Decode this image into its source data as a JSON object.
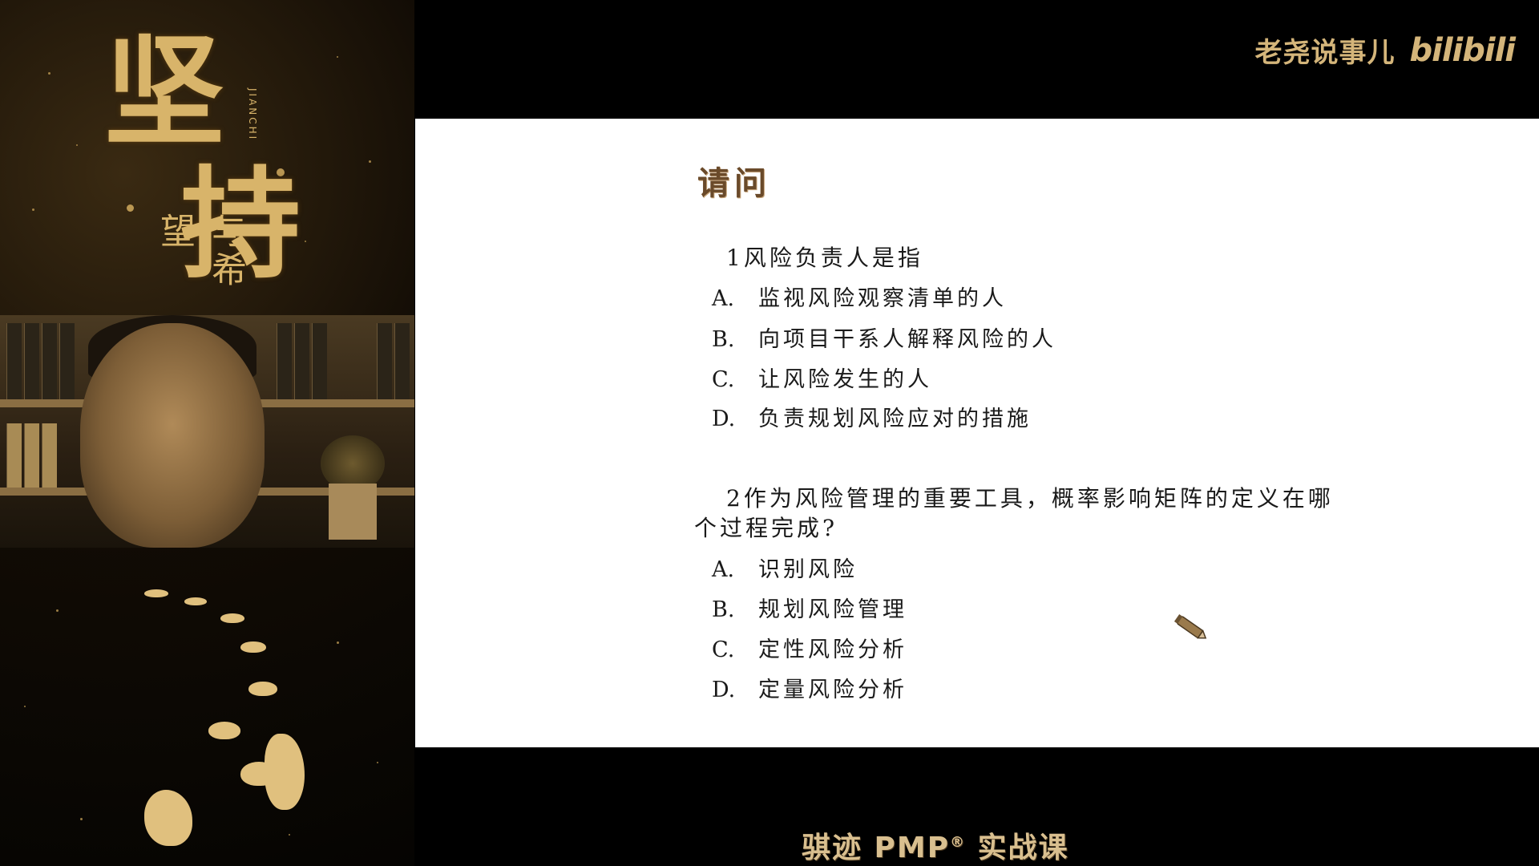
{
  "brand": {
    "author": "老尧说事儿",
    "logo": "bilibili"
  },
  "poster": {
    "title_char_1": "坚",
    "title_char_2": "持",
    "subtitle": "与希望",
    "pinyin": "JIANCHI"
  },
  "slide": {
    "heading": "请问",
    "question1": {
      "text": "1风险负责人是指",
      "options": [
        {
          "label": "A.",
          "text": "监视风险观察清单的人"
        },
        {
          "label": "B.",
          "text": "向项目干系人解释风险的人"
        },
        {
          "label": "C.",
          "text": "让风险发生的人"
        },
        {
          "label": "D.",
          "text": "负责规划风险应对的措施"
        }
      ]
    },
    "question2": {
      "text_line1": "2作为风险管理的重要工具，概率影响矩阵的定义在哪",
      "text_line2": "个过程完成?",
      "options": [
        {
          "label": "A.",
          "text": "识别风险"
        },
        {
          "label": "B.",
          "text": "规划风险管理"
        },
        {
          "label": "C.",
          "text": "定性风险分析"
        },
        {
          "label": "D.",
          "text": "定量风险分析"
        }
      ]
    }
  },
  "caption": {
    "prefix": "骐迹 PMP",
    "registered": "®",
    "suffix": " 实战课"
  },
  "colors": {
    "gold": "#d4b57a",
    "heading_brown": "#6a4a2a"
  }
}
